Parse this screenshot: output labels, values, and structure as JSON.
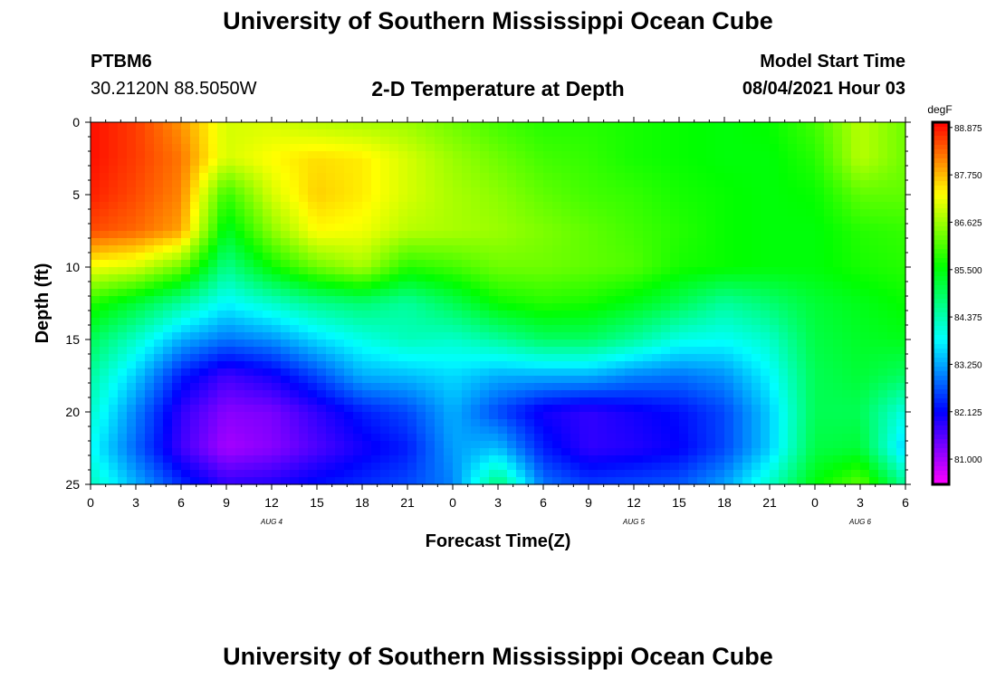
{
  "header": {
    "title": "University of Southern Mississippi Ocean Cube",
    "station_id": "PTBM6",
    "station_coords": "30.2120N  88.5050W",
    "plot_title": "2-D Temperature at Depth",
    "model_start_label": "Model Start Time",
    "model_start_value": "08/04/2021 Hour 03"
  },
  "footer": {
    "title": "University of Southern Mississippi Ocean Cube"
  },
  "chart_data": {
    "type": "heatmap",
    "title": "2-D Temperature at Depth",
    "xlabel": "Forecast Time(Z)",
    "ylabel": "Depth (ft)",
    "x_tick_labels": [
      "0",
      "3",
      "6",
      "9",
      "12",
      "15",
      "18",
      "21",
      "0",
      "3",
      "6",
      "9",
      "12",
      "15",
      "18",
      "21",
      "0",
      "3",
      "6"
    ],
    "y_tick_labels": [
      "0",
      "5",
      "10",
      "15",
      "20",
      "25"
    ],
    "y_ticks": [
      0,
      5,
      10,
      15,
      20,
      25
    ],
    "ylim": [
      25,
      0
    ],
    "xlim_hours": [
      0,
      54
    ],
    "date_labels": [
      {
        "label": "AUG 4",
        "hour": 12
      },
      {
        "label": "AUG 5",
        "hour": 36
      },
      {
        "label": "AUG 6",
        "hour": 51
      }
    ],
    "colorbar": {
      "unit": "degF",
      "tick_labels": [
        "88.875",
        "87.750",
        "86.625",
        "85.500",
        "84.375",
        "83.250",
        "82.125",
        "81.000"
      ],
      "range": [
        80.4,
        89.0
      ]
    },
    "x_hours": [
      0,
      3,
      6,
      9,
      12,
      15,
      18,
      21,
      24,
      27,
      30,
      33,
      36,
      39,
      42,
      45,
      48,
      51,
      54
    ],
    "depths_ft": [
      0,
      2.5,
      5,
      7.5,
      10,
      12.5,
      15,
      17.5,
      20,
      22.5,
      25
    ],
    "temperature_degF": [
      [
        88.9,
        88.6,
        88.0,
        87.0,
        87.0,
        86.8,
        86.7,
        86.6,
        86.3,
        86.0,
        85.8,
        85.8,
        85.7,
        85.6,
        85.5,
        85.6,
        86.0,
        86.8,
        86.3
      ],
      [
        88.9,
        88.6,
        88.2,
        87.0,
        87.3,
        87.5,
        87.4,
        87.0,
        86.6,
        86.3,
        86.0,
        85.9,
        85.7,
        85.6,
        85.5,
        85.5,
        85.8,
        86.8,
        86.3
      ],
      [
        88.8,
        88.5,
        88.1,
        85.9,
        87.0,
        87.6,
        87.4,
        87.0,
        86.7,
        86.5,
        86.2,
        86.0,
        85.9,
        85.7,
        85.6,
        85.5,
        85.6,
        86.2,
        86.2
      ],
      [
        88.5,
        88.3,
        87.9,
        85.3,
        86.5,
        87.3,
        87.2,
        86.8,
        86.7,
        86.6,
        86.4,
        86.2,
        86.0,
        85.8,
        85.6,
        85.5,
        85.5,
        85.8,
        85.9
      ],
      [
        87.2,
        87.0,
        86.3,
        84.6,
        85.6,
        86.3,
        86.7,
        85.8,
        86.0,
        86.3,
        86.3,
        86.2,
        86.1,
        85.7,
        85.6,
        85.5,
        85.5,
        85.7,
        85.8
      ],
      [
        85.8,
        85.2,
        84.5,
        83.8,
        84.2,
        84.6,
        84.8,
        84.5,
        85.0,
        85.6,
        85.8,
        85.7,
        85.4,
        85.0,
        84.5,
        84.8,
        85.2,
        85.4,
        85.6
      ],
      [
        85.0,
        84.2,
        83.3,
        82.9,
        83.1,
        83.6,
        84.0,
        84.3,
        84.2,
        84.5,
        84.9,
        84.9,
        84.5,
        84.0,
        83.9,
        84.2,
        85.1,
        85.3,
        85.4
      ],
      [
        84.5,
        83.5,
        82.3,
        81.7,
        82.0,
        82.6,
        83.3,
        83.4,
        83.6,
        83.3,
        83.3,
        83.3,
        83.0,
        82.9,
        83.1,
        83.8,
        85.0,
        85.2,
        84.9
      ],
      [
        84.2,
        83.0,
        81.8,
        81.2,
        81.3,
        81.8,
        82.3,
        82.6,
        83.3,
        82.6,
        82.0,
        81.8,
        82.0,
        82.2,
        82.6,
        83.5,
        85.0,
        85.0,
        84.0
      ],
      [
        83.9,
        82.8,
        81.7,
        81.0,
        81.2,
        81.6,
        82.0,
        82.3,
        83.2,
        83.4,
        82.3,
        81.8,
        81.9,
        82.1,
        82.6,
        83.5,
        85.1,
        85.2,
        83.5
      ],
      [
        84.3,
        83.3,
        82.4,
        81.8,
        81.9,
        82.2,
        82.4,
        82.6,
        83.0,
        84.8,
        82.9,
        82.5,
        82.6,
        82.7,
        83.2,
        84.2,
        85.5,
        86.2,
        84.5
      ]
    ]
  }
}
